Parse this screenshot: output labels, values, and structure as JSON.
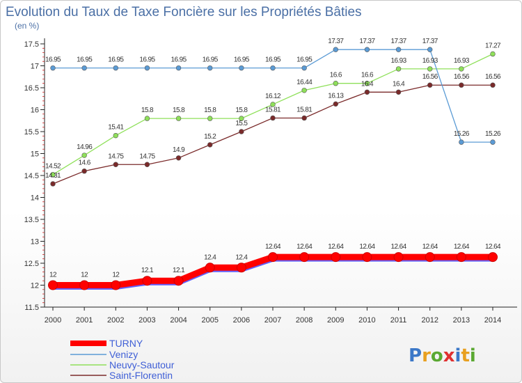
{
  "chart_data": {
    "type": "line",
    "title": "Evolution du Taux de Taxe Foncière sur les Propriétés Bâties",
    "subtitle": "(en %)",
    "xlabel": "",
    "ylabel": "",
    "categories": [
      "2000",
      "2001",
      "2002",
      "2003",
      "2004",
      "2005",
      "2006",
      "2007",
      "2008",
      "2009",
      "2010",
      "2011",
      "2012",
      "2013",
      "2014"
    ],
    "ylim": [
      11.5,
      17.5
    ],
    "yticks": [
      "11.5",
      "12",
      "12.5",
      "13",
      "13.5",
      "14",
      "14.5",
      "15",
      "15.5",
      "16",
      "16.5",
      "17",
      "17.5"
    ],
    "grid": false,
    "legend_position": "bottom-left",
    "series": [
      {
        "name": "TURNY",
        "color": "#ff0000",
        "values": [
          12,
          12,
          12,
          12.1,
          12.1,
          12.4,
          12.4,
          12.64,
          12.64,
          12.64,
          12.64,
          12.64,
          12.64,
          12.64,
          12.64
        ],
        "labels": [
          "12",
          "12",
          "12",
          "12.1",
          "12.1",
          "12.4",
          "12.4",
          "12.64",
          "12.64",
          "12.64",
          "12.64",
          "12.64",
          "12.64",
          "12.64",
          "12.64"
        ]
      },
      {
        "name": "Venizy",
        "color": "#5b9bd5",
        "values": [
          16.95,
          16.95,
          16.95,
          16.95,
          16.95,
          16.95,
          16.95,
          16.95,
          16.95,
          17.37,
          17.37,
          17.37,
          17.37,
          15.26,
          15.26
        ],
        "labels": [
          "16.95",
          "16.95",
          "16.95",
          "16.95",
          "16.95",
          "16.95",
          "16.95",
          "16.95",
          "16.95",
          "17.37",
          "17.37",
          "17.37",
          "17.37",
          "15.26",
          "15.26"
        ]
      },
      {
        "name": "Neuvy-Sautour",
        "color": "#8fe05a",
        "values": [
          14.52,
          14.96,
          15.41,
          15.8,
          15.8,
          15.8,
          15.8,
          16.12,
          16.44,
          16.6,
          16.6,
          16.93,
          16.93,
          16.93,
          17.27
        ],
        "labels": [
          "14.52",
          "14.96",
          "15.41",
          "15.8",
          "15.8",
          "15.8",
          "15.8",
          "16.12",
          "16.44",
          "16.6",
          "16.6",
          "16.93",
          "16.93",
          "16.93",
          "17.27"
        ]
      },
      {
        "name": "Saint-Florentin",
        "color": "#7a2a2a",
        "values": [
          14.31,
          14.6,
          14.75,
          14.75,
          14.9,
          15.2,
          15.5,
          15.81,
          15.81,
          16.13,
          16.4,
          16.4,
          16.56,
          16.56,
          16.56
        ],
        "labels": [
          "14.31",
          "14.6",
          "14.75",
          "14.75",
          "14.9",
          "15.2",
          "15.5",
          "15.81",
          "15.81",
          "16.13",
          "16.4",
          "16.4",
          "16.56",
          "16.56",
          "16.56"
        ]
      }
    ]
  },
  "logo": {
    "text": "Proxiti",
    "colors": [
      "#3c78c8",
      "#e8a020",
      "#5aa832",
      "#e03030",
      "#3c78c8",
      "#e8a020",
      "#5aa832"
    ]
  }
}
